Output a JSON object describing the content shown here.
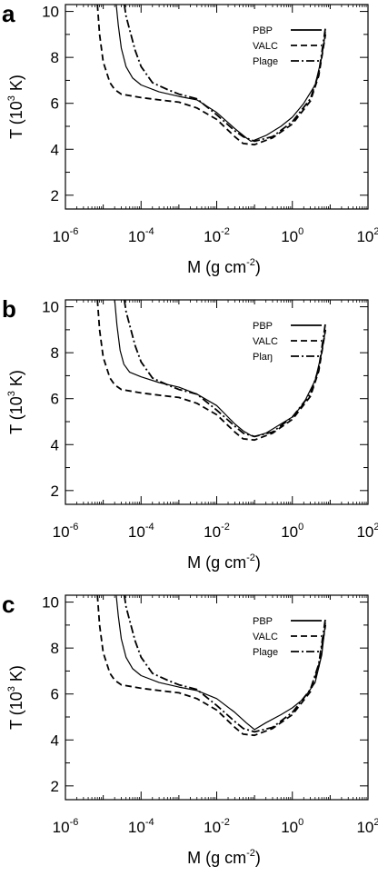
{
  "chart_data": [
    {
      "type": "line",
      "panel_label": "a",
      "xlabel": "M (g cm",
      "xlabel_sup": "-2",
      "xlabel_end": ")",
      "ylabel": "T (10",
      "ylabel_sup": "3",
      "ylabel_end": " K)",
      "x_scale": "log",
      "xlim": [
        1e-06,
        100
      ],
      "ylim": [
        1.4,
        10.3
      ],
      "x_ticks": [
        {
          "base": "10",
          "exp": "-6"
        },
        {
          "base": "10",
          "exp": "-4"
        },
        {
          "base": "10",
          "exp": "-2"
        },
        {
          "base": "10",
          "exp": "0"
        },
        {
          "base": "10",
          "exp": "2"
        }
      ],
      "y_ticks": [
        "2",
        "4",
        "6",
        "8",
        "10"
      ],
      "grid": false,
      "legend_position": "top-right",
      "series": [
        {
          "name": "PBP",
          "style": "solid",
          "x": [
            2.2e-05,
            2.5e-05,
            3e-05,
            4e-05,
            6e-05,
            0.0001,
            0.0003,
            0.001,
            0.003,
            0.01,
            0.03,
            0.06,
            0.08,
            0.1,
            0.2,
            0.5,
            1,
            2,
            4,
            6,
            7.5
          ],
          "y": [
            10.3,
            9.4,
            8.4,
            7.6,
            7.1,
            6.8,
            6.5,
            6.3,
            6.15,
            5.6,
            4.9,
            4.5,
            4.35,
            4.4,
            4.6,
            5.0,
            5.4,
            6.0,
            6.8,
            8.0,
            9.1
          ]
        },
        {
          "name": "VALC",
          "style": "dashed",
          "x": [
            7e-06,
            8e-06,
            1e-05,
            1.5e-05,
            2e-05,
            3e-05,
            0.0001,
            0.0003,
            0.001,
            0.003,
            0.01,
            0.03,
            0.05,
            0.1,
            0.3,
            1,
            3,
            5,
            7.5
          ],
          "y": [
            10.3,
            9.0,
            7.8,
            6.9,
            6.6,
            6.4,
            6.25,
            6.15,
            6.05,
            5.8,
            5.3,
            4.55,
            4.25,
            4.2,
            4.5,
            5.1,
            6.1,
            7.2,
            9.0
          ]
        },
        {
          "name": "Plage",
          "style": "dashdot",
          "x": [
            3.6e-05,
            4e-05,
            5e-05,
            7e-05,
            0.0001,
            0.0002,
            0.0005,
            0.001,
            0.003,
            0.01,
            0.03,
            0.05,
            0.1,
            0.3,
            1,
            3,
            5,
            7.5
          ],
          "y": [
            10.3,
            9.8,
            9.2,
            8.3,
            7.6,
            6.9,
            6.6,
            6.4,
            6.2,
            5.5,
            4.8,
            4.55,
            4.35,
            4.55,
            5.2,
            6.2,
            7.3,
            9.3
          ]
        }
      ]
    },
    {
      "type": "line",
      "panel_label": "b",
      "xlabel": "M (g cm",
      "xlabel_sup": "-2",
      "xlabel_end": ")",
      "ylabel": "T (10",
      "ylabel_sup": "3",
      "ylabel_end": " K)",
      "x_scale": "log",
      "xlim": [
        1e-06,
        100
      ],
      "ylim": [
        1.4,
        10.3
      ],
      "x_ticks": [
        {
          "base": "10",
          "exp": "-6"
        },
        {
          "base": "10",
          "exp": "-4"
        },
        {
          "base": "10",
          "exp": "-2"
        },
        {
          "base": "10",
          "exp": "0"
        },
        {
          "base": "10",
          "exp": "2"
        }
      ],
      "y_ticks": [
        "2",
        "4",
        "6",
        "8",
        "10"
      ],
      "grid": false,
      "legend_position": "top-right",
      "series": [
        {
          "name": "PBP",
          "style": "solid",
          "x": [
            2e-05,
            2.3e-05,
            2.8e-05,
            3.5e-05,
            5e-05,
            0.0001,
            0.0003,
            0.001,
            0.003,
            0.01,
            0.03,
            0.05,
            0.08,
            0.1,
            0.2,
            0.5,
            1,
            2,
            4,
            6,
            7.5
          ],
          "y": [
            10.3,
            9.2,
            8.1,
            7.5,
            7.15,
            6.95,
            6.7,
            6.5,
            6.2,
            5.7,
            4.9,
            4.6,
            4.4,
            4.35,
            4.5,
            4.9,
            5.2,
            5.8,
            6.8,
            8.0,
            9.0
          ]
        },
        {
          "name": "VALC",
          "style": "dashed",
          "x": [
            7e-06,
            8e-06,
            1e-05,
            1.5e-05,
            2e-05,
            3e-05,
            0.0001,
            0.0003,
            0.001,
            0.003,
            0.01,
            0.03,
            0.05,
            0.1,
            0.3,
            1,
            3,
            5,
            7.5
          ],
          "y": [
            10.3,
            9.0,
            7.8,
            6.9,
            6.6,
            6.4,
            6.25,
            6.15,
            6.05,
            5.8,
            5.3,
            4.55,
            4.25,
            4.2,
            4.5,
            5.1,
            6.1,
            7.2,
            9.0
          ]
        },
        {
          "name": "Plaŋ",
          "style": "dashdot",
          "x": [
            3.6e-05,
            4e-05,
            5e-05,
            7e-05,
            0.0001,
            0.0002,
            0.0005,
            0.001,
            0.003,
            0.01,
            0.03,
            0.05,
            0.1,
            0.3,
            1,
            3,
            5,
            7.5
          ],
          "y": [
            10.3,
            9.8,
            9.2,
            8.3,
            7.6,
            6.9,
            6.6,
            6.4,
            6.2,
            5.5,
            4.8,
            4.5,
            4.35,
            4.55,
            5.2,
            6.2,
            7.3,
            9.3
          ]
        }
      ]
    },
    {
      "type": "line",
      "panel_label": "c",
      "xlabel": "M (g cm",
      "xlabel_sup": "-2",
      "xlabel_end": ")",
      "ylabel": "T (10",
      "ylabel_sup": "3",
      "ylabel_end": " K)",
      "x_scale": "log",
      "xlim": [
        1e-06,
        100
      ],
      "ylim": [
        1.4,
        10.3
      ],
      "x_ticks": [
        {
          "base": "10",
          "exp": "-6"
        },
        {
          "base": "10",
          "exp": "-4"
        },
        {
          "base": "10",
          "exp": "-2"
        },
        {
          "base": "10",
          "exp": "0"
        },
        {
          "base": "10",
          "exp": "2"
        }
      ],
      "y_ticks": [
        "2",
        "4",
        "6",
        "8",
        "10"
      ],
      "grid": false,
      "legend_position": "top-right",
      "series": [
        {
          "name": "PBP",
          "style": "solid",
          "x": [
            2.2e-05,
            2.5e-05,
            3e-05,
            4e-05,
            6e-05,
            0.0001,
            0.0003,
            0.001,
            0.003,
            0.01,
            0.03,
            0.06,
            0.1,
            0.2,
            0.5,
            1,
            2,
            4,
            6,
            7.5
          ],
          "y": [
            10.3,
            9.4,
            8.4,
            7.6,
            7.1,
            6.8,
            6.5,
            6.3,
            6.15,
            5.8,
            5.2,
            4.75,
            4.45,
            4.75,
            5.1,
            5.4,
            5.8,
            6.5,
            7.7,
            9.1
          ]
        },
        {
          "name": "VALC",
          "style": "dashed",
          "x": [
            7e-06,
            8e-06,
            1e-05,
            1.5e-05,
            2e-05,
            3e-05,
            0.0001,
            0.0003,
            0.001,
            0.003,
            0.01,
            0.03,
            0.05,
            0.1,
            0.3,
            1,
            3,
            5,
            7.5
          ],
          "y": [
            10.3,
            9.0,
            7.8,
            6.9,
            6.6,
            6.4,
            6.25,
            6.15,
            6.05,
            5.8,
            5.3,
            4.55,
            4.25,
            4.2,
            4.5,
            5.1,
            6.1,
            7.2,
            9.0
          ]
        },
        {
          "name": "Plage",
          "style": "dashdot",
          "x": [
            3.6e-05,
            4e-05,
            5e-05,
            7e-05,
            0.0001,
            0.0002,
            0.0005,
            0.001,
            0.003,
            0.01,
            0.03,
            0.05,
            0.1,
            0.3,
            1,
            3,
            5,
            7.5
          ],
          "y": [
            10.3,
            9.8,
            9.2,
            8.3,
            7.6,
            6.9,
            6.6,
            6.4,
            6.2,
            5.5,
            4.8,
            4.5,
            4.35,
            4.55,
            5.2,
            6.2,
            7.3,
            9.3
          ]
        }
      ]
    }
  ]
}
